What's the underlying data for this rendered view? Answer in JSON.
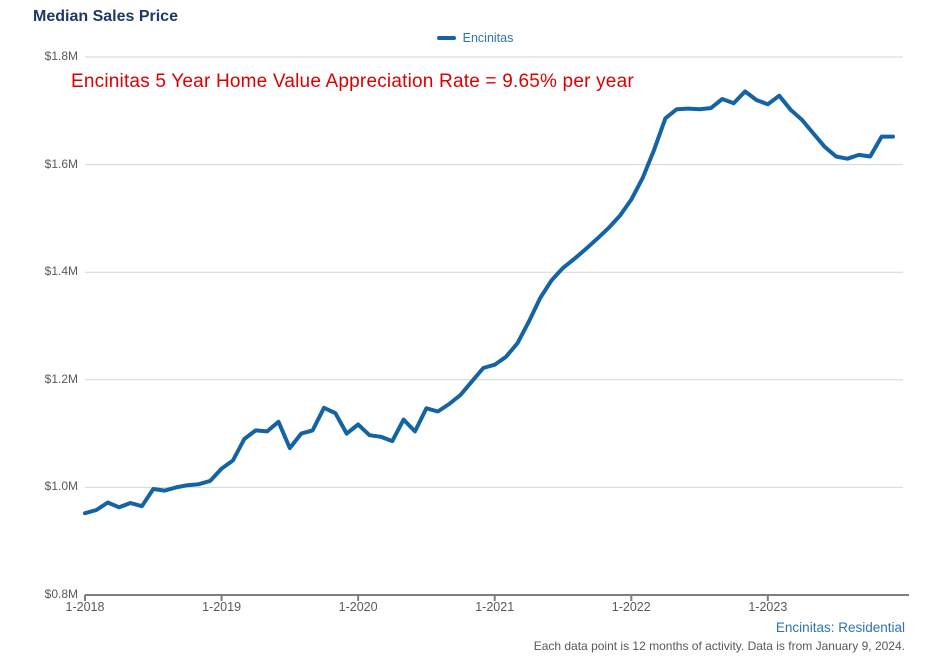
{
  "header": {
    "title": "Median Sales Price"
  },
  "legend": {
    "label": "Encinitas"
  },
  "annotation": {
    "text": "Encinitas 5 Year Home Value Appreciation Rate = 9.65% per year"
  },
  "footer": {
    "link": "Encinitas: Residential",
    "note": "Each data point is 12 months of activity. Data is from January 9, 2024."
  },
  "colors": {
    "line": "#1464a5",
    "title": "#1f3864",
    "legend_text": "#2e74b5",
    "link": "#2e74b5",
    "annotation": "#dd0000",
    "axis_text": "#595959",
    "grid": "#d6d6d6",
    "axis_line": "#7f7f7f"
  },
  "chart_data": {
    "type": "line",
    "title": "Median Sales Price",
    "xlabel": "",
    "ylabel": "",
    "ylim": [
      0.8,
      1.8
    ],
    "y_unit": "millions USD",
    "grid": "horizontal",
    "legend_position": "top-center",
    "y_ticks": [
      1.8,
      1.6,
      1.4,
      1.2,
      1.0,
      0.8
    ],
    "y_tick_labels": [
      "$1.8M",
      "$1.6M",
      "$1.4M",
      "$1.2M",
      "$1.0M",
      "$0.8M"
    ],
    "x_tick_labels": [
      "1-2018",
      "1-2019",
      "1-2020",
      "1-2021",
      "1-2022",
      "1-2023"
    ],
    "x_tick_every_n_points": 12,
    "series": [
      {
        "name": "Encinitas",
        "x": [
          "2018-01",
          "2018-02",
          "2018-03",
          "2018-04",
          "2018-05",
          "2018-06",
          "2018-07",
          "2018-08",
          "2018-09",
          "2018-10",
          "2018-11",
          "2018-12",
          "2019-01",
          "2019-02",
          "2019-03",
          "2019-04",
          "2019-05",
          "2019-06",
          "2019-07",
          "2019-08",
          "2019-09",
          "2019-10",
          "2019-11",
          "2019-12",
          "2020-01",
          "2020-02",
          "2020-03",
          "2020-04",
          "2020-05",
          "2020-06",
          "2020-07",
          "2020-08",
          "2020-09",
          "2020-10",
          "2020-11",
          "2020-12",
          "2021-01",
          "2021-02",
          "2021-03",
          "2021-04",
          "2021-05",
          "2021-06",
          "2021-07",
          "2021-08",
          "2021-09",
          "2021-10",
          "2021-11",
          "2021-12",
          "2022-01",
          "2022-02",
          "2022-03",
          "2022-04",
          "2022-05",
          "2022-06",
          "2022-07",
          "2022-08",
          "2022-09",
          "2022-10",
          "2022-11",
          "2022-12",
          "2023-01",
          "2023-02",
          "2023-03",
          "2023-04",
          "2023-05",
          "2023-06",
          "2023-07",
          "2023-08",
          "2023-09",
          "2023-10",
          "2023-11",
          "2023-12"
        ],
        "values": [
          0.952,
          0.958,
          0.972,
          0.963,
          0.971,
          0.965,
          0.997,
          0.994,
          1.0,
          1.004,
          1.006,
          1.012,
          1.035,
          1.05,
          1.09,
          1.106,
          1.104,
          1.122,
          1.073,
          1.1,
          1.106,
          1.148,
          1.138,
          1.1,
          1.117,
          1.097,
          1.094,
          1.086,
          1.126,
          1.104,
          1.147,
          1.141,
          1.155,
          1.172,
          1.197,
          1.222,
          1.228,
          1.243,
          1.268,
          1.308,
          1.352,
          1.385,
          1.408,
          1.425,
          1.443,
          1.462,
          1.482,
          1.505,
          1.535,
          1.575,
          1.627,
          1.686,
          1.703,
          1.704,
          1.703,
          1.705,
          1.722,
          1.714,
          1.736,
          1.72,
          1.712,
          1.728,
          1.702,
          1.683,
          1.658,
          1.633,
          1.615,
          1.611,
          1.618,
          1.615,
          1.652,
          1.652
        ]
      }
    ]
  }
}
